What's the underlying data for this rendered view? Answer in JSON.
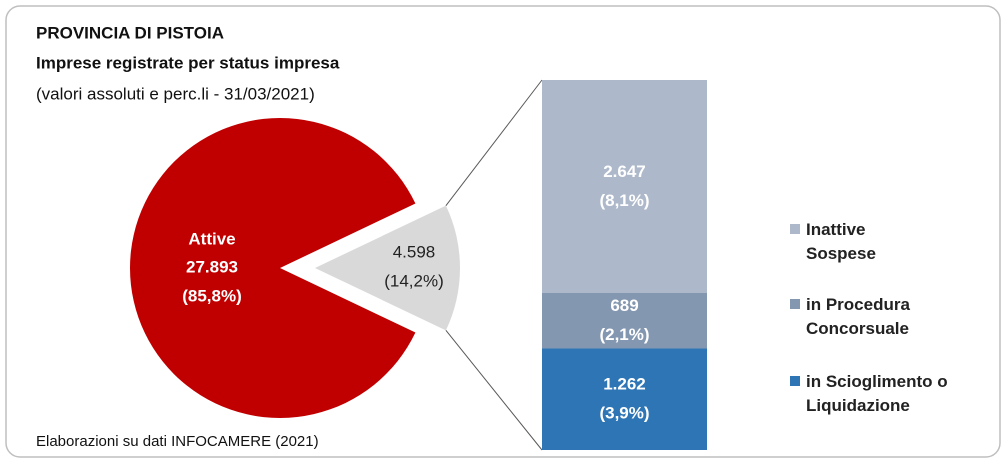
{
  "chart_data": {
    "type": "pie",
    "title": "PROVINCIA DI PISTOIA",
    "subtitle": "Imprese registrate per status impresa",
    "note": "(valori assoluti e perc.li - 31/03/2021)",
    "source": "Elaborazioni su dati INFOCAMERE (2021)",
    "pie": {
      "categories": [
        "Attive",
        null
      ],
      "values": [
        27893,
        4598
      ],
      "value_labels": [
        "27.893",
        "4.598"
      ],
      "percents": [
        85.8,
        14.2
      ],
      "percent_labels": [
        "(85,8%)",
        "(14,2%)"
      ],
      "colors": [
        "#c00000",
        "#d9d9d9"
      ]
    },
    "bar": {
      "categories": [
        "Inattive Sospese",
        "in Procedura Concorsuale",
        "in Scioglimento o Liquidazione"
      ],
      "values": [
        2647,
        689,
        1262
      ],
      "value_labels": [
        "2.647",
        "689",
        "1.262"
      ],
      "percents": [
        8.1,
        2.1,
        3.9
      ],
      "percent_labels": [
        "(8,1%)",
        "(2,1%)",
        "(3,9%)"
      ],
      "colors": [
        "#adb9ca",
        "#8497b0",
        "#2e75b6"
      ]
    }
  }
}
